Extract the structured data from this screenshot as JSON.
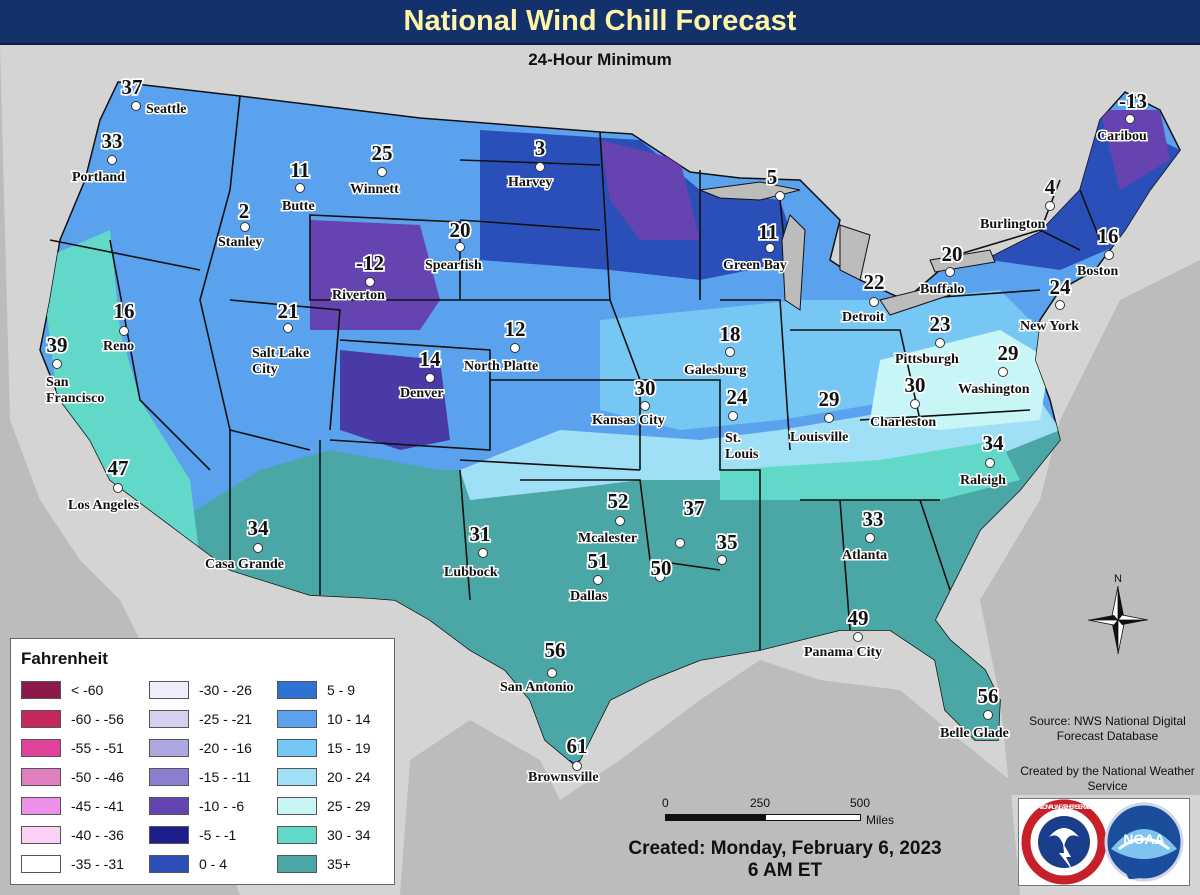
{
  "title": "National Wind Chill Forecast",
  "subtitle": "24-Hour Minimum",
  "legend": {
    "title": "Fahrenheit",
    "items": [
      {
        "label": "< -60",
        "color": "#8b1a4a"
      },
      {
        "label": "-60 - -56",
        "color": "#c4285e"
      },
      {
        "label": "-55 - -51",
        "color": "#e0439a"
      },
      {
        "label": "-50 - -46",
        "color": "#e07fc0"
      },
      {
        "label": "-45 - -41",
        "color": "#ee8fe8"
      },
      {
        "label": "-40 - -36",
        "color": "#fad0f5"
      },
      {
        "label": "-35 - -31",
        "color": "#ffffff"
      },
      {
        "label": "-30 - -26",
        "color": "#eeeefc"
      },
      {
        "label": "-25 - -21",
        "color": "#d3d0f0"
      },
      {
        "label": "-20 - -16",
        "color": "#ada8e0"
      },
      {
        "label": "-15 - -11",
        "color": "#8a7fcf"
      },
      {
        "label": "-10 - -6",
        "color": "#6543b0"
      },
      {
        "label": "-5 - -1",
        "color": "#1c1e8c"
      },
      {
        "label": "0 - 4",
        "color": "#2a4fb8"
      },
      {
        "label": "5 - 9",
        "color": "#2f72d4"
      },
      {
        "label": "10 - 14",
        "color": "#5aa2ee"
      },
      {
        "label": "15 - 19",
        "color": "#77c7f4"
      },
      {
        "label": "20 - 24",
        "color": "#9fe0f7"
      },
      {
        "label": "25 - 29",
        "color": "#c8f6f6"
      },
      {
        "label": "30 - 34",
        "color": "#62d8c8"
      },
      {
        "label": "35+",
        "color": "#4aa7a5"
      }
    ]
  },
  "cities": [
    {
      "name": "Seattle",
      "value": "37"
    },
    {
      "name": "Portland",
      "value": "33"
    },
    {
      "name": "Butte",
      "value": "11"
    },
    {
      "name": "Winnett",
      "value": "25"
    },
    {
      "name": "Stanley",
      "value": "2"
    },
    {
      "name": "Harvey",
      "value": "3"
    },
    {
      "name": "Spearfish",
      "value": "20"
    },
    {
      "name": "Riverton",
      "value": "-12"
    },
    {
      "name": "Reno",
      "value": "16"
    },
    {
      "name": "San Francisco",
      "value": "39"
    },
    {
      "name": "Salt Lake City",
      "value": "21"
    },
    {
      "name": "Denver",
      "value": "14"
    },
    {
      "name": "North Platte",
      "value": "12"
    },
    {
      "name": "Los Angeles",
      "value": "47"
    },
    {
      "name": "Casa Grande",
      "value": "34"
    },
    {
      "name": "Lubbock",
      "value": "31"
    },
    {
      "name": "Mcalester",
      "value": "52"
    },
    {
      "name": "Dallas",
      "value": "51"
    },
    {
      "name": "San Antonio",
      "value": "56"
    },
    {
      "name": "Brownsville",
      "value": "61"
    },
    {
      "name": "Kansas City",
      "value": "30"
    },
    {
      "name": "Galesburg",
      "value": "18"
    },
    {
      "name": "St. Louis",
      "value": "24"
    },
    {
      "name": "Green Bay",
      "value": "11"
    },
    {
      "name": "Detroit",
      "value": "22"
    },
    {
      "name": "Louisville",
      "value": "29"
    },
    {
      "name": "Charleston",
      "value": "30"
    },
    {
      "name": "Pittsburgh",
      "value": "23"
    },
    {
      "name": "Buffalo",
      "value": "20"
    },
    {
      "name": "Burlington",
      "value": "4"
    },
    {
      "name": "Caribou",
      "value": "-13"
    },
    {
      "name": "Boston",
      "value": "16"
    },
    {
      "name": "New York",
      "value": "24"
    },
    {
      "name": "Washington",
      "value": "29"
    },
    {
      "name": "Raleigh",
      "value": "34"
    },
    {
      "name": "Atlanta",
      "value": "33"
    },
    {
      "name": "Panama City",
      "value": "49"
    },
    {
      "name": "Belle Glade",
      "value": "56"
    },
    {
      "name": "Upper Michigan",
      "value": "5"
    },
    {
      "name": "Arkansas",
      "value": "37"
    },
    {
      "name": "Memphis",
      "value": "35"
    },
    {
      "name": "Louisiana",
      "value": "50"
    }
  ],
  "scale": {
    "ticks": [
      "0",
      "250",
      "500"
    ],
    "unit": "Miles"
  },
  "created_line": "Created: Monday, February 6, 2023",
  "time_line": "6 AM ET",
  "source": "Source: NWS National Digital Forecast Database",
  "created_by": "Created by the National Weather Service",
  "logo_text": {
    "nws": "NATIONAL WEATHER SERVICE",
    "noaa": "NOAA"
  },
  "compass": "N"
}
